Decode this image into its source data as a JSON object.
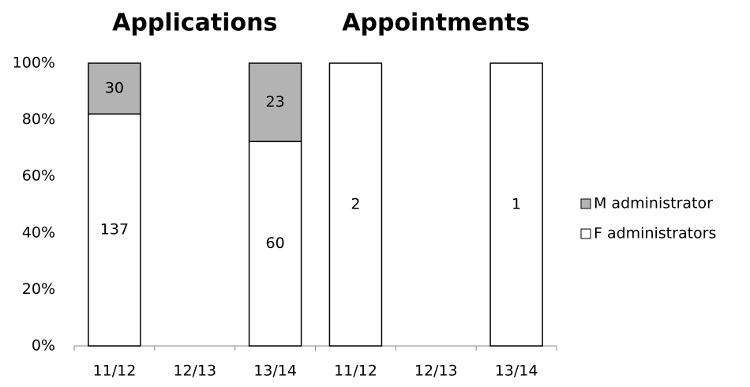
{
  "chart_data": {
    "type": "bar",
    "stack": "percent",
    "group_titles": [
      "Applications",
      "Appointments"
    ],
    "categories": [
      "11/12",
      "12/13",
      "13/14",
      "11/12",
      "12/13",
      "13/14"
    ],
    "series": [
      {
        "name": "M administrator",
        "color": "#b3b3b3",
        "values": [
          30,
          null,
          23,
          null,
          null,
          null
        ]
      },
      {
        "name": "F administrators",
        "color": "#ffffff",
        "values": [
          137,
          null,
          60,
          2,
          null,
          1
        ]
      }
    ],
    "ylim": [
      0,
      100
    ],
    "yticks": [
      {
        "value": 0,
        "label": "0%"
      },
      {
        "value": 20,
        "label": "20%"
      },
      {
        "value": 40,
        "label": "40%"
      },
      {
        "value": 60,
        "label": "60%"
      },
      {
        "value": 80,
        "label": "80%"
      },
      {
        "value": 100,
        "label": "100%"
      }
    ],
    "legend": "right"
  }
}
